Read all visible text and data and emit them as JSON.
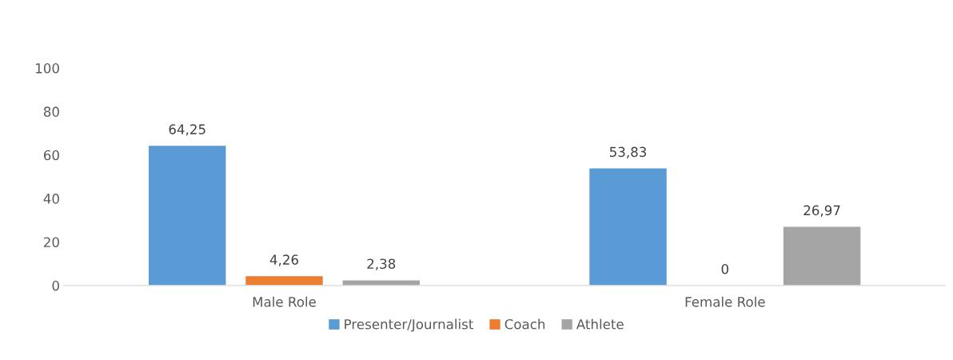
{
  "chart_data": {
    "type": "bar",
    "categories": [
      "Male Role",
      "Female Role"
    ],
    "series": [
      {
        "name": "Presenter/Journalist",
        "color": "#5b9bd5",
        "values": [
          64.25,
          53.83
        ],
        "value_labels": [
          "64,25",
          "53,83"
        ]
      },
      {
        "name": "Coach",
        "color": "#ed7d31",
        "values": [
          4.26,
          0
        ],
        "value_labels": [
          "4,26",
          "0"
        ]
      },
      {
        "name": "Athlete",
        "color": "#a5a5a5",
        "values": [
          2.38,
          26.97
        ],
        "value_labels": [
          "2,38",
          "26,97"
        ]
      }
    ],
    "ylim": [
      0,
      100
    ],
    "yticks": [
      0,
      20,
      40,
      60,
      80,
      100
    ],
    "grid": false,
    "legend": "bottom"
  }
}
